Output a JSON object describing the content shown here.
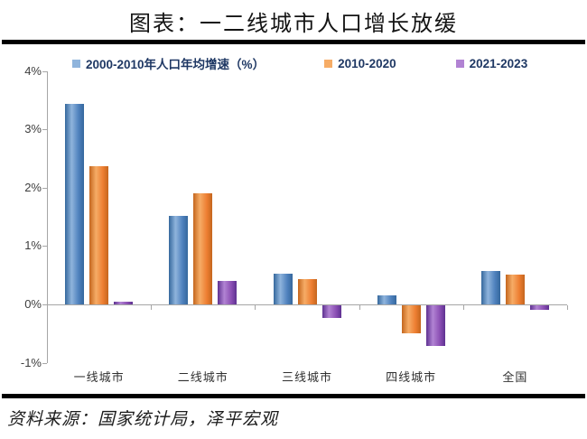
{
  "title": "图表：一二线城市人口增长放缓",
  "source": "资料来源：国家统计局，泽平宏观",
  "colors": {
    "legend_text": "#1F3864",
    "axis_line": "#a6a6a6",
    "rule": "#000000",
    "background": "#ffffff"
  },
  "chart_data": {
    "type": "bar",
    "title": "图表：一二线城市人口增长放缓",
    "categories": [
      "一线城市",
      "二线城市",
      "三线城市",
      "四线城市",
      "全国"
    ],
    "series": [
      {
        "name": "2000-2010年人口年均增速（%）",
        "color": "#4F81BD",
        "color_light": "#8FB4DC",
        "color_dark": "#35689D",
        "values": [
          3.43,
          1.52,
          0.52,
          0.16,
          0.57
        ]
      },
      {
        "name": "2010-2020",
        "color": "#ED7D31",
        "color_light": "#F6AC66",
        "color_dark": "#C4661E",
        "values": [
          2.37,
          1.91,
          0.43,
          -0.48,
          0.51
        ]
      },
      {
        "name": "2021-2023",
        "color": "#8B4FB4",
        "color_light": "#B183D3",
        "color_dark": "#5E3191",
        "values": [
          0.05,
          0.4,
          -0.21,
          -0.7,
          -0.07
        ]
      }
    ],
    "xlabel": "",
    "ylabel": "",
    "ylim": [
      -1,
      4
    ],
    "ytick_labels": [
      "4%",
      "3%",
      "2%",
      "1%",
      "0%",
      "-1%"
    ],
    "ytick_values": [
      4,
      3,
      2,
      1,
      0,
      -1
    ],
    "grid": false,
    "legend_position": "top"
  }
}
